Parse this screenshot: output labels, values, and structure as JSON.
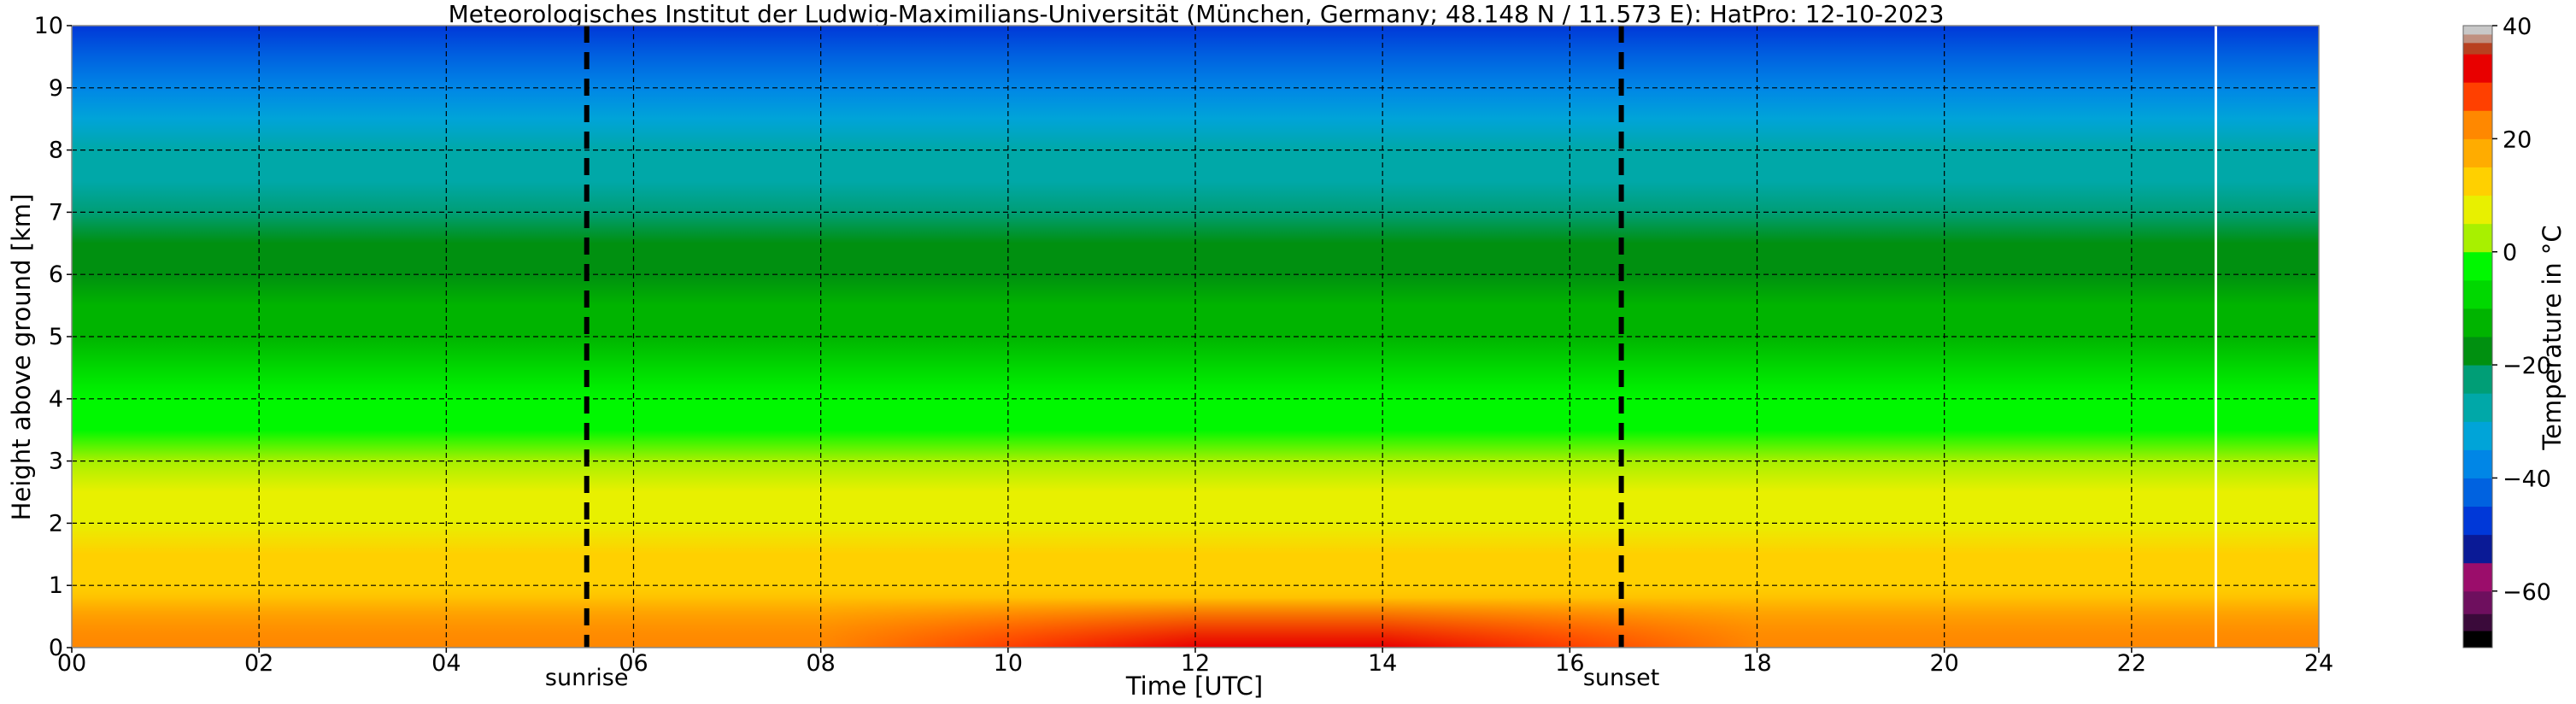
{
  "chart_data": {
    "type": "heatmap",
    "title": "Meteorologisches Institut der Ludwig-Maximilians-Universität (München, Germany; 48.148 N / 11.573 E):    HatPro: 12-10-2023",
    "xlabel": "Time [UTC]",
    "ylabel": "Height above ground [km]",
    "colorbar_label": "Temperature in $^\\circ$C",
    "colorbar_label_display": "Temperature in °C",
    "xlim": [
      0,
      24
    ],
    "ylim": [
      0,
      10
    ],
    "x_ticks": [
      0,
      2,
      4,
      6,
      8,
      10,
      12,
      14,
      16,
      18,
      20,
      22,
      24
    ],
    "x_tick_labels": [
      "00",
      "02",
      "04",
      "06",
      "08",
      "10",
      "12",
      "14",
      "16",
      "18",
      "20",
      "22",
      "24"
    ],
    "y_ticks": [
      0,
      1,
      2,
      3,
      4,
      5,
      6,
      7,
      8,
      9,
      10
    ],
    "y_tick_labels": [
      "0",
      "1",
      "2",
      "3",
      "4",
      "5",
      "6",
      "7",
      "8",
      "9",
      "10"
    ],
    "grid": true,
    "colorbar_ticks": [
      -60,
      -40,
      -20,
      0,
      20,
      40
    ],
    "colorbar_tick_labels": [
      "−60",
      "−40",
      "−20",
      "0",
      "20",
      "40"
    ],
    "colorbar_range": [
      -70,
      40
    ],
    "colorbar_colors": [
      {
        "from": -70,
        "to": -67,
        "color": "#000000"
      },
      {
        "from": -67,
        "to": -64,
        "color": "#3a0a3a"
      },
      {
        "from": -64,
        "to": -60,
        "color": "#6e0f5e"
      },
      {
        "from": -60,
        "to": -55,
        "color": "#9b0d6b"
      },
      {
        "from": -55,
        "to": -50,
        "color": "#0a1a96"
      },
      {
        "from": -50,
        "to": -45,
        "color": "#0038d8"
      },
      {
        "from": -45,
        "to": -40,
        "color": "#0062e0"
      },
      {
        "from": -40,
        "to": -35,
        "color": "#0086e6"
      },
      {
        "from": -35,
        "to": -30,
        "color": "#00a4d8"
      },
      {
        "from": -30,
        "to": -25,
        "color": "#00a8a8"
      },
      {
        "from": -25,
        "to": -20,
        "color": "#009e76"
      },
      {
        "from": -20,
        "to": -15,
        "color": "#009010"
      },
      {
        "from": -15,
        "to": -10,
        "color": "#00b400"
      },
      {
        "from": -10,
        "to": -5,
        "color": "#00d800"
      },
      {
        "from": -5,
        "to": 0,
        "color": "#00f800"
      },
      {
        "from": 0,
        "to": 5,
        "color": "#a8f000"
      },
      {
        "from": 5,
        "to": 10,
        "color": "#e8f000"
      },
      {
        "from": 10,
        "to": 15,
        "color": "#ffd000"
      },
      {
        "from": 15,
        "to": 20,
        "color": "#ffac00"
      },
      {
        "from": 20,
        "to": 25,
        "color": "#ff8800"
      },
      {
        "from": 25,
        "to": 30,
        "color": "#ff4000"
      },
      {
        "from": 30,
        "to": 35,
        "color": "#e80000"
      },
      {
        "from": 35,
        "to": 37,
        "color": "#b84020"
      },
      {
        "from": 37,
        "to": 38.5,
        "color": "#c09080"
      },
      {
        "from": 38.5,
        "to": 40,
        "color": "#c8c8c8"
      }
    ],
    "profile": [
      {
        "height_km": 0.0,
        "temp_c": 20
      },
      {
        "height_km": 0.5,
        "temp_c": 17
      },
      {
        "height_km": 1.0,
        "temp_c": 14
      },
      {
        "height_km": 1.5,
        "temp_c": 12
      },
      {
        "height_km": 2.0,
        "temp_c": 9
      },
      {
        "height_km": 2.5,
        "temp_c": 6
      },
      {
        "height_km": 3.0,
        "temp_c": 3
      },
      {
        "height_km": 3.5,
        "temp_c": -1
      },
      {
        "height_km": 4.0,
        "temp_c": -5
      },
      {
        "height_km": 4.5,
        "temp_c": -8
      },
      {
        "height_km": 5.0,
        "temp_c": -11
      },
      {
        "height_km": 5.5,
        "temp_c": -14
      },
      {
        "height_km": 6.0,
        "temp_c": -17
      },
      {
        "height_km": 6.5,
        "temp_c": -20
      },
      {
        "height_km": 7.0,
        "temp_c": -24
      },
      {
        "height_km": 7.5,
        "temp_c": -27
      },
      {
        "height_km": 8.0,
        "temp_c": -30
      },
      {
        "height_km": 8.5,
        "temp_c": -33
      },
      {
        "height_km": 9.0,
        "temp_c": -37
      },
      {
        "height_km": 9.5,
        "temp_c": -42
      },
      {
        "height_km": 10.0,
        "temp_c": -48
      }
    ],
    "surface_warming": [
      {
        "time_utc": 0,
        "delta_c": 0
      },
      {
        "time_utc": 8,
        "delta_c": 2
      },
      {
        "time_utc": 10,
        "delta_c": 7
      },
      {
        "time_utc": 12,
        "delta_c": 11
      },
      {
        "time_utc": 14,
        "delta_c": 10
      },
      {
        "time_utc": 16,
        "delta_c": 6
      },
      {
        "time_utc": 18,
        "delta_c": 2
      },
      {
        "time_utc": 24,
        "delta_c": 0
      }
    ],
    "events": [
      {
        "label": "sunrise",
        "time_utc": 5.5
      },
      {
        "label": "sunset",
        "time_utc": 16.55
      }
    ],
    "data_gap_time_utc": 22.9
  }
}
